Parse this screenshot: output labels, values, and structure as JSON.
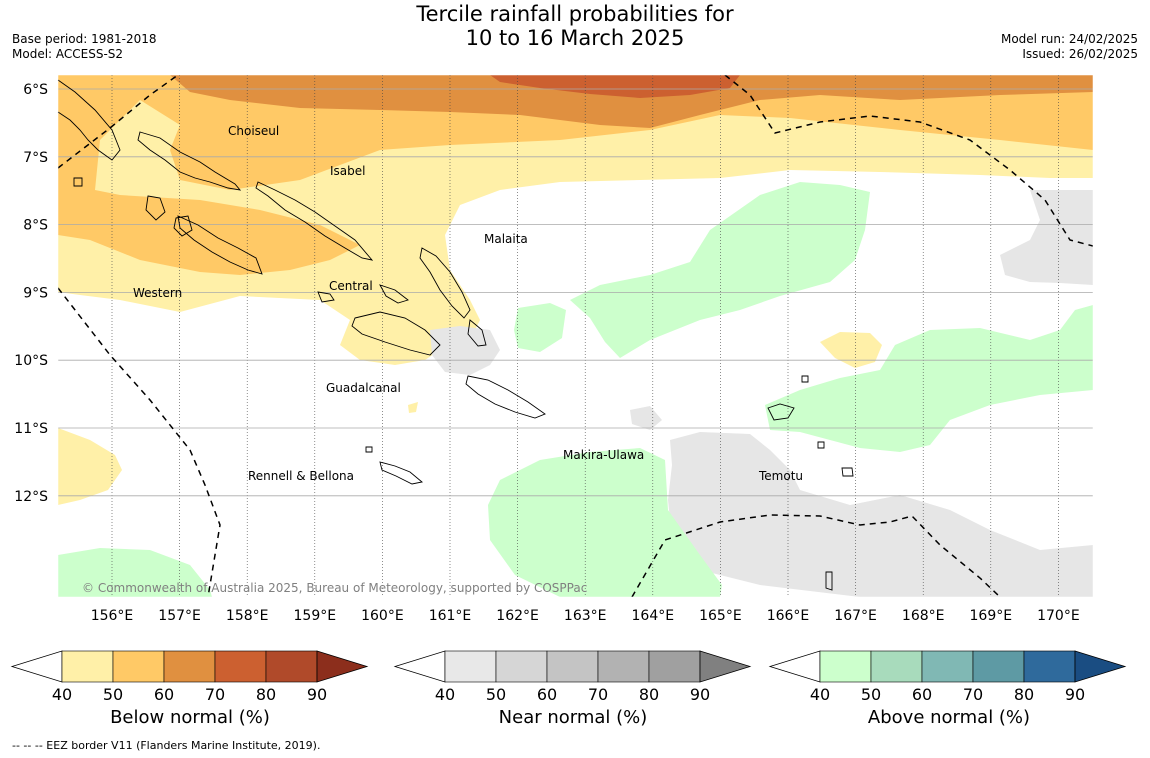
{
  "title_line1": "Tercile rainfall probabilities for",
  "title_line2": "10 to 16 March 2025",
  "base_period": "Base period: 1981-2018",
  "model": "Model: ACCESS-S2",
  "model_run": "Model run: 24/02/2025",
  "issued": "Issued: 26/02/2025",
  "copyright": "© Commonwealth of Australia 2025, Bureau of Meteorology, supported by COSPPac",
  "footnote": "--  --  -- EEZ border V11 (Flanders Marine Institute, 2019).",
  "lon_labels": [
    "156°E",
    "157°E",
    "158°E",
    "159°E",
    "160°E",
    "161°E",
    "162°E",
    "163°E",
    "164°E",
    "165°E",
    "166°E",
    "167°E",
    "168°E",
    "169°E",
    "170°E"
  ],
  "lat_labels": [
    "6°S",
    "7°S",
    "8°S",
    "9°S",
    "10°S",
    "11°S",
    "12°S"
  ],
  "regions": {
    "choiseul": "Choiseul",
    "isabel": "Isabel",
    "malaita": "Malaita",
    "western": "Western",
    "central": "Central",
    "guadalcanal": "Guadalcanal",
    "makira": "Makira-Ulawa",
    "temotu": "Temotu",
    "rennell": "Rennell & Bellona"
  },
  "colorbars": [
    {
      "label": "Below normal (%)",
      "ticks": [
        "40",
        "50",
        "60",
        "70",
        "80",
        "90"
      ],
      "colors": [
        "#fff0a8",
        "#ffc966",
        "#e09040",
        "#cc6030",
        "#b04a2a",
        "#8c2e1c"
      ]
    },
    {
      "label": "Near normal (%)",
      "ticks": [
        "40",
        "50",
        "60",
        "70",
        "80",
        "90"
      ],
      "colors": [
        "#e8e8e8",
        "#d6d6d6",
        "#c4c4c4",
        "#b2b2b2",
        "#a0a0a0",
        "#808080"
      ]
    },
    {
      "label": "Above normal (%)",
      "ticks": [
        "40",
        "50",
        "60",
        "70",
        "80",
        "90"
      ],
      "colors": [
        "#ccffcc",
        "#a8dbbc",
        "#80b8b4",
        "#5e9aa4",
        "#2f6a9c",
        "#1a4d82"
      ]
    }
  ]
}
